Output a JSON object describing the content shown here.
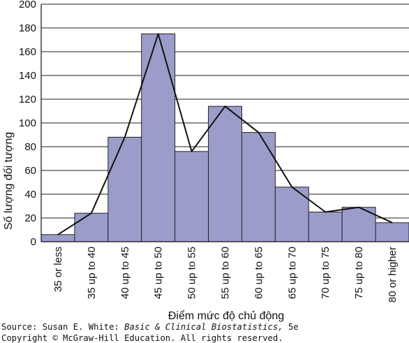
{
  "chart_data": {
    "type": "bar",
    "categories": [
      "35 or less",
      "35 up to 40",
      "40 up to 45",
      "45 up to 50",
      "50 up to 55",
      "55 up to 60",
      "60 up to 65",
      "65 up to 70",
      "70 up to 75",
      "75 up to 80",
      "80 or higher"
    ],
    "series": [
      {
        "type": "bar",
        "values": [
          6,
          24,
          88,
          175,
          76,
          114,
          92,
          46,
          25,
          29,
          16
        ]
      },
      {
        "type": "line",
        "values": [
          6,
          24,
          88,
          175,
          76,
          114,
          92,
          46,
          25,
          29,
          16
        ]
      }
    ],
    "xlabel": "Điểm mức độ chủ động",
    "ylabel": "Số lượng đối tượng",
    "ylim": [
      0,
      200
    ],
    "yticks": [
      "0",
      "20",
      "40",
      "60",
      "80",
      "100",
      "120",
      "140",
      "160",
      "180",
      "200"
    ],
    "grid": true,
    "bar_color": "#9a9dca",
    "line_color": "#111111"
  },
  "source": {
    "prefix": "Source: Susan E. White: ",
    "book": "Basic & Clinical Biostatistics,",
    "edition": " 5e",
    "copyright": "Copyright © McGraw-Hill Education. All rights reserved."
  }
}
